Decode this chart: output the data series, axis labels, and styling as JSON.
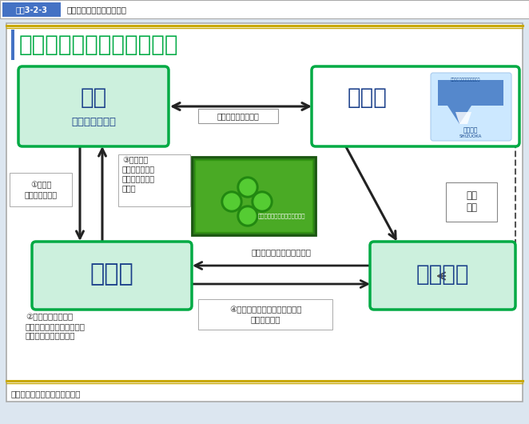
{
  "title": "健康マイレージ事業の流れ",
  "header_label": "図表3-2-3",
  "header_text": "健康マイレージ事業の流れ",
  "source": "資料：静岡県ホームページより",
  "bg_outer": "#dce6f0",
  "bg_inner": "#ffffff",
  "header_bg": "#4472c4",
  "box_fill": "#ccf0dd",
  "box_border": "#00aa44",
  "arrow_color": "#222222",
  "title_color": "#00aa44",
  "label_color": "#1a3f8a",
  "dashed_color": "#555555"
}
